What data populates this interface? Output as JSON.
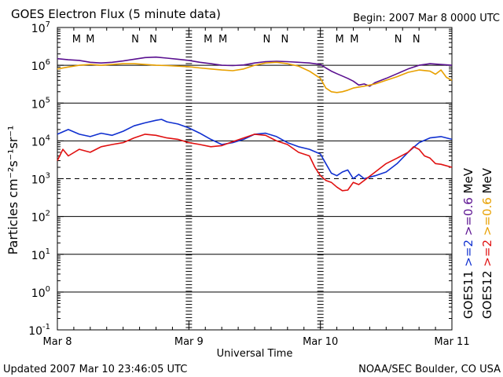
{
  "header": {
    "title": "GOES Electron Flux (5 minute data)",
    "begin": "Begin: 2007 Mar 8 0000 UTC"
  },
  "footer": {
    "updated": "Updated 2007 Mar 10 23:46:05 UTC",
    "credit": "NOAA/SEC Boulder, CO USA"
  },
  "colors": {
    "goes11_2mev": "#1030d0",
    "goes11_06mev": "#5a1090",
    "goes12_2mev": "#e01010",
    "goes12_06mev": "#e8a000",
    "axis": "#000000",
    "background": "#ffffff"
  },
  "chart_data": {
    "type": "line",
    "title": "GOES Electron Flux (5 minute data)",
    "xlabel": "Universal Time",
    "ylabel": "Particles cm⁻²s⁻¹sr⁻¹",
    "y_scale": "log",
    "ylim": [
      0.1,
      10000000
    ],
    "y_ticks": [
      {
        "value": 0.1,
        "base": "10",
        "exp": "-1"
      },
      {
        "value": 1,
        "base": "10",
        "exp": "0"
      },
      {
        "value": 10,
        "base": "10",
        "exp": "1"
      },
      {
        "value": 100,
        "base": "10",
        "exp": "2"
      },
      {
        "value": 1000,
        "base": "10",
        "exp": "3"
      },
      {
        "value": 10000,
        "base": "10",
        "exp": "4"
      },
      {
        "value": 100000,
        "base": "10",
        "exp": "5"
      },
      {
        "value": 1000000,
        "base": "10",
        "exp": "6"
      },
      {
        "value": 10000000,
        "base": "10",
        "exp": "7"
      }
    ],
    "xlim": [
      0,
      72
    ],
    "x_unit": "hours since 2007 Mar 8 0000 UTC",
    "x_ticks": [
      {
        "hour": 0,
        "label": "Mar 8"
      },
      {
        "hour": 24,
        "label": "Mar 9"
      },
      {
        "hour": 48,
        "label": "Mar 10"
      },
      {
        "hour": 72,
        "label": "Mar 11"
      }
    ],
    "reference_lines": [
      {
        "value": 1000,
        "style": "dashed"
      },
      {
        "value": 1000000,
        "style": "solid"
      }
    ],
    "markers": [
      {
        "hour": 3.5,
        "label": "M",
        "color": "#e01010"
      },
      {
        "hour": 6.0,
        "label": "M",
        "color": "#1030d0"
      },
      {
        "hour": 14.2,
        "label": "N",
        "color": "#e01010"
      },
      {
        "hour": 17.5,
        "label": "N",
        "color": "#1030d0"
      },
      {
        "hour": 27.5,
        "label": "M",
        "color": "#e01010"
      },
      {
        "hour": 30.2,
        "label": "M",
        "color": "#1030d0"
      },
      {
        "hour": 38.2,
        "label": "N",
        "color": "#e01010"
      },
      {
        "hour": 41.5,
        "label": "N",
        "color": "#1030d0"
      },
      {
        "hour": 51.5,
        "label": "M",
        "color": "#e01010"
      },
      {
        "hour": 54.2,
        "label": "M",
        "color": "#1030d0"
      },
      {
        "hour": 62.2,
        "label": "N",
        "color": "#e01010"
      },
      {
        "hour": 65.5,
        "label": "N",
        "color": "#1030d0"
      }
    ],
    "legend": {
      "placement": "right, rotated vertical",
      "columns": [
        {
          "satellite": "GOES11",
          "entries": [
            {
              "label": ">=2",
              "color": "#1030d0"
            },
            {
              "label": ">=0.6",
              "color": "#5a1090"
            },
            {
              "label": "MeV",
              "color": "#000000"
            }
          ]
        },
        {
          "satellite": "GOES12",
          "entries": [
            {
              "label": ">=2",
              "color": "#e01010"
            },
            {
              "label": ">=0.6",
              "color": "#e8a000"
            },
            {
              "label": "MeV",
              "color": "#000000"
            }
          ]
        }
      ]
    },
    "series": [
      {
        "name": "GOES11 >=0.6 MeV",
        "color": "#5a1090",
        "x": [
          0,
          2,
          4,
          6,
          8,
          10,
          12,
          14,
          16,
          18,
          20,
          22,
          24,
          26,
          28,
          30,
          32,
          34,
          36,
          38,
          40,
          42,
          44,
          46,
          48,
          49,
          50,
          51,
          52,
          53,
          54,
          55,
          56,
          57,
          58,
          60,
          62,
          64,
          66,
          68,
          70,
          72
        ],
        "values": [
          1500000,
          1400000,
          1350000,
          1200000,
          1150000,
          1200000,
          1300000,
          1450000,
          1600000,
          1650000,
          1550000,
          1450000,
          1350000,
          1200000,
          1100000,
          1000000,
          980000,
          1020000,
          1150000,
          1250000,
          1280000,
          1250000,
          1200000,
          1150000,
          1050000,
          850000,
          700000,
          600000,
          520000,
          450000,
          380000,
          300000,
          320000,
          280000,
          350000,
          450000,
          600000,
          800000,
          1000000,
          1100000,
          1050000,
          1000000
        ]
      },
      {
        "name": "GOES12 >=0.6 MeV",
        "color": "#e8a000",
        "x": [
          0,
          2,
          4,
          6,
          8,
          10,
          12,
          14,
          16,
          18,
          20,
          22,
          24,
          26,
          28,
          30,
          32,
          34,
          36,
          38,
          40,
          42,
          44,
          46,
          48,
          49,
          50,
          51,
          52,
          53,
          54,
          56,
          58,
          60,
          62,
          64,
          66,
          68,
          69,
          70,
          71,
          72
        ],
        "values": [
          800000,
          900000,
          1000000,
          1050000,
          1000000,
          1050000,
          1100000,
          1100000,
          1050000,
          1000000,
          980000,
          950000,
          920000,
          850000,
          800000,
          750000,
          720000,
          800000,
          1000000,
          1150000,
          1200000,
          1100000,
          950000,
          700000,
          450000,
          250000,
          200000,
          190000,
          200000,
          220000,
          250000,
          280000,
          320000,
          400000,
          500000,
          650000,
          750000,
          700000,
          580000,
          750000,
          480000,
          400000
        ]
      },
      {
        "name": "GOES11 >=2 MeV",
        "color": "#1030d0",
        "x": [
          0,
          2,
          4,
          6,
          8,
          10,
          12,
          14,
          16,
          18,
          19,
          20,
          22,
          24,
          26,
          28,
          30,
          32,
          34,
          36,
          38,
          40,
          42,
          44,
          46,
          48,
          49,
          50,
          51,
          52,
          53,
          54,
          55,
          56,
          58,
          60,
          62,
          64,
          66,
          68,
          70,
          72
        ],
        "values": [
          15000,
          20000,
          15000,
          13000,
          16000,
          14000,
          18000,
          25000,
          30000,
          35000,
          37000,
          32000,
          28000,
          22000,
          16000,
          11000,
          8000,
          9000,
          11000,
          15000,
          16000,
          13000,
          9000,
          7000,
          6000,
          4500,
          2500,
          1400,
          1200,
          1500,
          1700,
          1000,
          1300,
          1000,
          1200,
          1500,
          2500,
          5000,
          9000,
          12000,
          13000,
          11000
        ]
      },
      {
        "name": "GOES12 >=2 MeV",
        "color": "#e01010",
        "x": [
          0,
          1,
          2,
          4,
          6,
          8,
          10,
          12,
          14,
          16,
          18,
          20,
          22,
          24,
          26,
          28,
          30,
          32,
          34,
          36,
          38,
          40,
          42,
          44,
          46,
          47,
          48,
          49,
          50,
          51,
          52,
          53,
          54,
          55,
          56,
          58,
          60,
          62,
          64,
          65,
          66,
          67,
          68,
          69,
          70,
          72
        ],
        "values": [
          3000,
          6000,
          4000,
          6000,
          5000,
          7000,
          8000,
          9000,
          12000,
          15000,
          14000,
          12000,
          11000,
          9000,
          8000,
          7000,
          7500,
          9500,
          12000,
          15000,
          14000,
          10000,
          8000,
          5000,
          4000,
          2000,
          1200,
          900,
          800,
          600,
          480,
          500,
          800,
          700,
          900,
          1500,
          2500,
          3500,
          5000,
          7000,
          6000,
          4000,
          3500,
          2500,
          2400,
          2000
        ]
      }
    ]
  }
}
